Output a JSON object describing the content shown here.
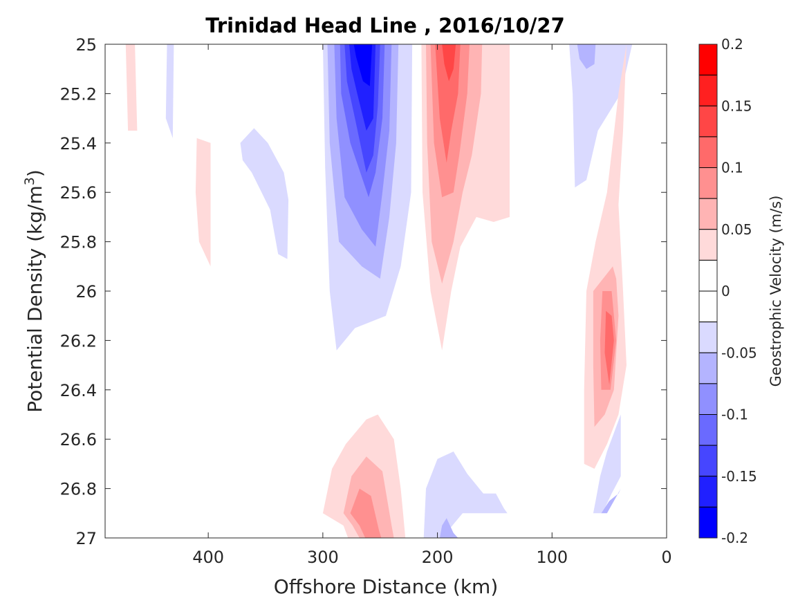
{
  "chart_data": {
    "type": "heatmap",
    "subtype": "filled-contour",
    "title": "Trinidad Head Line , 2016/10/27",
    "xlabel": "Offshore Distance (km)",
    "ylabel": "Potential Density (kg/m",
    "ylabel_superscript": "3",
    "ylabel_suffix": ")",
    "x_reversed": true,
    "xlim": [
      0,
      490
    ],
    "ylim": [
      25,
      27
    ],
    "y_reversed": true,
    "xticks": [
      400,
      300,
      200,
      100,
      0
    ],
    "xtick_labels": [
      "400",
      "300",
      "200",
      "100",
      "0"
    ],
    "yticks": [
      25,
      25.2,
      25.4,
      25.6,
      25.8,
      26,
      26.2,
      26.4,
      26.6,
      26.8,
      27
    ],
    "ytick_labels": [
      "25",
      "25.2",
      "25.4",
      "25.6",
      "25.8",
      "26",
      "26.2",
      "26.4",
      "26.6",
      "26.8",
      "27"
    ],
    "colorbar": {
      "label": "Geostrophic Velocity (m/s)",
      "range": [
        -0.2,
        0.2
      ],
      "ticks": [
        0.2,
        0.15,
        0.1,
        0.05,
        0,
        -0.05,
        -0.1,
        -0.15,
        -0.2
      ],
      "tick_labels": [
        "0.2",
        "0.15",
        "0.1",
        "0.05",
        "0",
        "-0.05",
        "-0.1",
        "-0.15",
        "-0.2"
      ],
      "levels": [
        {
          "lo": 0.175,
          "hi": 0.2,
          "color": "#ff0000"
        },
        {
          "lo": 0.15,
          "hi": 0.175,
          "color": "#ff2020"
        },
        {
          "lo": 0.125,
          "hi": 0.15,
          "color": "#ff4646"
        },
        {
          "lo": 0.1,
          "hi": 0.125,
          "color": "#ff6a6a"
        },
        {
          "lo": 0.075,
          "hi": 0.1,
          "color": "#ff9090"
        },
        {
          "lo": 0.05,
          "hi": 0.075,
          "color": "#ffb4b4"
        },
        {
          "lo": 0.025,
          "hi": 0.05,
          "color": "#ffdada"
        },
        {
          "lo": 0,
          "hi": 0.025,
          "color": "#ffffff"
        },
        {
          "lo": -0.025,
          "hi": 0,
          "color": "#ffffff"
        },
        {
          "lo": -0.05,
          "hi": -0.025,
          "color": "#dadaff"
        },
        {
          "lo": -0.075,
          "hi": -0.05,
          "color": "#b4b4ff"
        },
        {
          "lo": -0.1,
          "hi": -0.075,
          "color": "#9090ff"
        },
        {
          "lo": -0.125,
          "hi": -0.1,
          "color": "#6a6aff"
        },
        {
          "lo": -0.15,
          "hi": -0.125,
          "color": "#4646ff"
        },
        {
          "lo": -0.175,
          "hi": -0.15,
          "color": "#2020ff"
        },
        {
          "lo": -0.2,
          "hi": -0.175,
          "color": "#0000ff"
        }
      ]
    },
    "regions": [
      {
        "name": "pos-far-west",
        "fill": "#ffdada",
        "points": [
          [
            472,
            25.0
          ],
          [
            464,
            25.0
          ],
          [
            462,
            25.35
          ],
          [
            470,
            25.35
          ]
        ]
      },
      {
        "name": "neg-west-thin",
        "fill": "#dadaff",
        "points": [
          [
            436,
            25.0
          ],
          [
            430,
            25.0
          ],
          [
            431,
            25.38
          ],
          [
            437,
            25.3
          ]
        ]
      },
      {
        "name": "pos-west-blob",
        "fill": "#ffdada",
        "points": [
          [
            410,
            25.38
          ],
          [
            398,
            25.4
          ],
          [
            398,
            25.9
          ],
          [
            408,
            25.8
          ],
          [
            411,
            25.6
          ]
        ]
      },
      {
        "name": "neg-west-blob",
        "fill": "#dadaff",
        "points": [
          [
            370,
            25.47
          ],
          [
            372,
            25.4
          ],
          [
            360,
            25.34
          ],
          [
            348,
            25.4
          ],
          [
            334,
            25.52
          ],
          [
            330,
            25.63
          ],
          [
            331,
            25.87
          ],
          [
            339,
            25.85
          ],
          [
            346,
            25.67
          ],
          [
            362,
            25.52
          ]
        ]
      },
      {
        "name": "neg-core-l1",
        "fill": "#dadaff",
        "points": [
          [
            300,
            25.0
          ],
          [
            222,
            25.0
          ],
          [
            223,
            25.6
          ],
          [
            232,
            25.9
          ],
          [
            245,
            26.1
          ],
          [
            272,
            26.15
          ],
          [
            288,
            26.24
          ],
          [
            294,
            26.0
          ],
          [
            298,
            25.5
          ]
        ]
      },
      {
        "name": "neg-core-l2",
        "fill": "#b4b4ff",
        "points": [
          [
            296,
            25.0
          ],
          [
            234,
            25.0
          ],
          [
            236,
            25.4
          ],
          [
            242,
            25.7
          ],
          [
            250,
            25.95
          ],
          [
            266,
            25.9
          ],
          [
            286,
            25.8
          ],
          [
            294,
            25.4
          ]
        ]
      },
      {
        "name": "neg-core-l3",
        "fill": "#9090ff",
        "points": [
          [
            290,
            25.0
          ],
          [
            240,
            25.0
          ],
          [
            242,
            25.35
          ],
          [
            248,
            25.6
          ],
          [
            254,
            25.82
          ],
          [
            266,
            25.75
          ],
          [
            281,
            25.62
          ],
          [
            288,
            25.3
          ]
        ]
      },
      {
        "name": "neg-core-l4",
        "fill": "#6a6aff",
        "points": [
          [
            285,
            25.0
          ],
          [
            246,
            25.0
          ],
          [
            248,
            25.3
          ],
          [
            254,
            25.52
          ],
          [
            260,
            25.62
          ],
          [
            276,
            25.4
          ],
          [
            284,
            25.2
          ]
        ]
      },
      {
        "name": "neg-core-l5",
        "fill": "#4646ff",
        "points": [
          [
            281,
            25.0
          ],
          [
            250,
            25.0
          ],
          [
            252,
            25.25
          ],
          [
            256,
            25.45
          ],
          [
            262,
            25.52
          ],
          [
            272,
            25.3
          ],
          [
            279,
            25.15
          ]
        ]
      },
      {
        "name": "neg-core-l6",
        "fill": "#2020ff",
        "points": [
          [
            277,
            25.0
          ],
          [
            254,
            25.0
          ],
          [
            256,
            25.3
          ],
          [
            262,
            25.35
          ],
          [
            270,
            25.2
          ],
          [
            275,
            25.1
          ]
        ]
      },
      {
        "name": "neg-core-l7",
        "fill": "#0000ff",
        "points": [
          [
            273,
            25.0
          ],
          [
            257,
            25.0
          ],
          [
            259,
            25.17
          ],
          [
            265,
            25.15
          ],
          [
            271,
            25.05
          ]
        ]
      },
      {
        "name": "pos-core-l1",
        "fill": "#ffdada",
        "points": [
          [
            214,
            25.0
          ],
          [
            137,
            25.0
          ],
          [
            137,
            25.7
          ],
          [
            151,
            25.72
          ],
          [
            166,
            25.7
          ],
          [
            180,
            25.82
          ],
          [
            188,
            26.0
          ],
          [
            196,
            26.24
          ],
          [
            206,
            26.0
          ],
          [
            213,
            25.6
          ]
        ]
      },
      {
        "name": "pos-core-l2",
        "fill": "#ffb4b4",
        "points": [
          [
            210,
            25.0
          ],
          [
            161,
            25.0
          ],
          [
            162,
            25.2
          ],
          [
            170,
            25.45
          ],
          [
            178,
            25.6
          ],
          [
            186,
            25.8
          ],
          [
            196,
            25.97
          ],
          [
            205,
            25.8
          ],
          [
            209,
            25.4
          ]
        ]
      },
      {
        "name": "pos-core-l3",
        "fill": "#ff9090",
        "points": [
          [
            206,
            25.0
          ],
          [
            172,
            25.0
          ],
          [
            174,
            25.2
          ],
          [
            181,
            25.45
          ],
          [
            186,
            25.6
          ],
          [
            196,
            25.62
          ],
          [
            203,
            25.4
          ]
        ]
      },
      {
        "name": "pos-core-l4",
        "fill": "#ff6a6a",
        "points": [
          [
            202,
            25.0
          ],
          [
            180,
            25.0
          ],
          [
            182,
            25.2
          ],
          [
            188,
            25.35
          ],
          [
            192,
            25.48
          ],
          [
            198,
            25.3
          ]
        ]
      },
      {
        "name": "pos-core-l5",
        "fill": "#ff4646",
        "points": [
          [
            196,
            25.0
          ],
          [
            184,
            25.0
          ],
          [
            186,
            25.1
          ],
          [
            190,
            25.15
          ],
          [
            194,
            25.08
          ]
        ]
      },
      {
        "name": "pos-deep-l1",
        "fill": "#ffdada",
        "points": [
          [
            300,
            26.9
          ],
          [
            292,
            26.72
          ],
          [
            280,
            26.62
          ],
          [
            262,
            26.52
          ],
          [
            252,
            26.5
          ],
          [
            238,
            26.6
          ],
          [
            232,
            26.8
          ],
          [
            230,
            26.9
          ],
          [
            228,
            27.0
          ],
          [
            278,
            27.0
          ],
          [
            282,
            26.95
          ]
        ]
      },
      {
        "name": "pos-deep-l2",
        "fill": "#ffb4b4",
        "points": [
          [
            282,
            26.9
          ],
          [
            275,
            26.75
          ],
          [
            262,
            26.67
          ],
          [
            248,
            26.73
          ],
          [
            240,
            26.95
          ],
          [
            238,
            27.0
          ],
          [
            268,
            27.0
          ],
          [
            274,
            26.95
          ]
        ]
      },
      {
        "name": "pos-deep-l3",
        "fill": "#ff9090",
        "points": [
          [
            276,
            26.9
          ],
          [
            268,
            26.8
          ],
          [
            258,
            26.83
          ],
          [
            251,
            26.97
          ],
          [
            249,
            27.0
          ],
          [
            263,
            27.0
          ],
          [
            268,
            26.95
          ]
        ]
      },
      {
        "name": "neg-deep-l1",
        "fill": "#dadaff",
        "points": [
          [
            212,
            27.0
          ],
          [
            210,
            26.8
          ],
          [
            200,
            26.68
          ],
          [
            186,
            26.65
          ],
          [
            174,
            26.74
          ],
          [
            160,
            26.82
          ],
          [
            149,
            26.82
          ],
          [
            142,
            26.88
          ],
          [
            139,
            26.9
          ],
          [
            178,
            26.9
          ],
          [
            196,
            27.0
          ]
        ]
      },
      {
        "name": "neg-deep-l2",
        "fill": "#b4b4ff",
        "points": [
          [
            198,
            27.0
          ],
          [
            196,
            26.95
          ],
          [
            192,
            26.92
          ],
          [
            186,
            26.98
          ],
          [
            182,
            27.0
          ]
        ]
      },
      {
        "name": "neg-east-top-l1",
        "fill": "#dadaff",
        "points": [
          [
            85,
            25.0
          ],
          [
            30,
            25.0
          ],
          [
            40,
            25.2
          ],
          [
            60,
            25.35
          ],
          [
            70,
            25.55
          ],
          [
            80,
            25.58
          ],
          [
            82,
            25.2
          ]
        ]
      },
      {
        "name": "neg-east-top-l2",
        "fill": "#b4b4ff",
        "points": [
          [
            78,
            25.0
          ],
          [
            62,
            25.0
          ],
          [
            63,
            25.08
          ],
          [
            70,
            25.1
          ],
          [
            76,
            25.06
          ]
        ]
      },
      {
        "name": "pos-east-l1",
        "fill": "#ffdada",
        "points": [
          [
            35,
            25.0
          ],
          [
            38,
            25.35
          ],
          [
            42,
            25.65
          ],
          [
            38,
            26.0
          ],
          [
            35,
            26.3
          ],
          [
            42,
            26.5
          ],
          [
            52,
            26.62
          ],
          [
            63,
            26.72
          ],
          [
            72,
            26.7
          ],
          [
            72,
            26.4
          ],
          [
            70,
            26.0
          ],
          [
            62,
            25.8
          ],
          [
            52,
            25.6
          ],
          [
            42,
            25.2
          ]
        ]
      },
      {
        "name": "pos-east-l2",
        "fill": "#ffb4b4",
        "points": [
          [
            47,
            25.9
          ],
          [
            64,
            26.0
          ],
          [
            64,
            26.3
          ],
          [
            63,
            26.55
          ],
          [
            54,
            26.5
          ],
          [
            46,
            26.4
          ],
          [
            42,
            26.1
          ],
          [
            44,
            25.95
          ]
        ]
      },
      {
        "name": "pos-east-l3",
        "fill": "#ff9090",
        "points": [
          [
            56,
            26.0
          ],
          [
            58,
            26.2
          ],
          [
            57,
            26.4
          ],
          [
            49,
            26.4
          ],
          [
            44,
            26.2
          ],
          [
            48,
            26.0
          ]
        ]
      },
      {
        "name": "pos-east-l4",
        "fill": "#ff6a6a",
        "points": [
          [
            53,
            26.08
          ],
          [
            54,
            26.25
          ],
          [
            50,
            26.38
          ],
          [
            46,
            26.2
          ],
          [
            48,
            26.1
          ]
        ]
      },
      {
        "name": "neg-east-bottom-l1",
        "fill": "#dadaff",
        "points": [
          [
            40,
            26.5
          ],
          [
            52,
            26.65
          ],
          [
            58,
            26.75
          ],
          [
            62,
            26.85
          ],
          [
            64,
            26.9
          ],
          [
            56,
            26.9
          ],
          [
            48,
            26.82
          ],
          [
            40,
            26.75
          ]
        ]
      },
      {
        "name": "neg-east-bottom-l2",
        "fill": "#b4b4ff",
        "points": [
          [
            40,
            26.8
          ],
          [
            46,
            26.85
          ],
          [
            52,
            26.9
          ],
          [
            57,
            26.9
          ],
          [
            50,
            26.85
          ],
          [
            42,
            26.82
          ]
        ]
      }
    ]
  }
}
